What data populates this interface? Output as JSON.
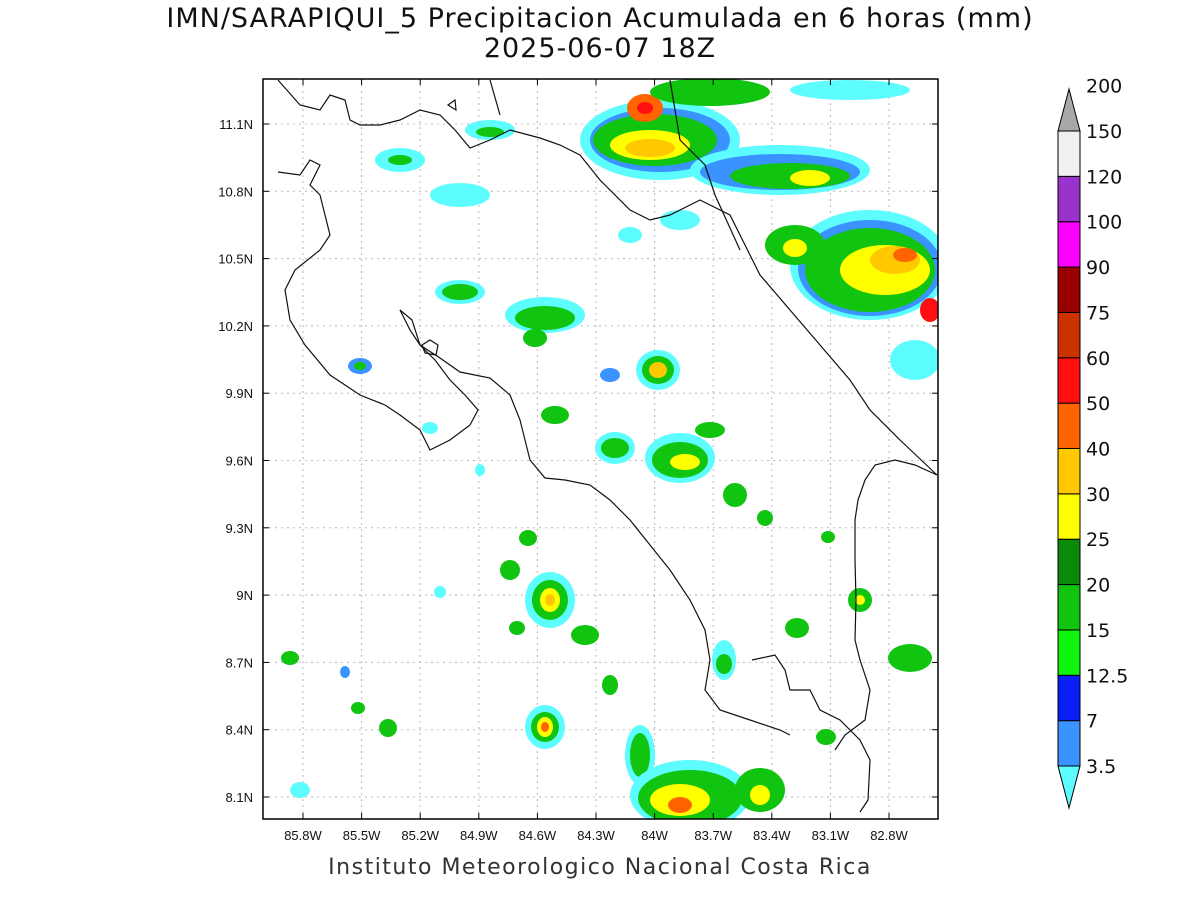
{
  "title_line1": "IMN/SARAPIQUI_5 Precipitacion Acumulada en 6 horas (mm)",
  "title_line2": "2025-06-07 18Z",
  "footer": "Instituto Meteorologico Nacional Costa Rica",
  "map": {
    "lon_range": [
      -86.0,
      -82.5
    ],
    "lat_range": [
      8.0,
      11.3
    ],
    "x_ticks": [
      "85.8W",
      "85.5W",
      "85.2W",
      "84.9W",
      "84.6W",
      "84.3W",
      "84W",
      "83.7W",
      "83.4W",
      "83.1W",
      "82.8W"
    ],
    "y_ticks": [
      "11.1N",
      "10.8N",
      "10.5N",
      "10.2N",
      "9.9N",
      "9.6N",
      "9.3N",
      "9N",
      "8.7N",
      "8.4N",
      "8.1N"
    ]
  },
  "colorbar": {
    "levels": [
      "3.5",
      "7",
      "12.5",
      "15",
      "20",
      "25",
      "30",
      "40",
      "50",
      "60",
      "75",
      "90",
      "100",
      "120",
      "150",
      "200"
    ],
    "colors": [
      "#5dfcff",
      "#3a93ff",
      "#0a1ff5",
      "#10f510",
      "#10c410",
      "#0a8a0a",
      "#ffff00",
      "#ffc800",
      "#ff6400",
      "#ff1010",
      "#cc3200",
      "#990000",
      "#ff00ff",
      "#9933cc",
      "#f0f0f0",
      "#a8a8a8"
    ]
  }
}
